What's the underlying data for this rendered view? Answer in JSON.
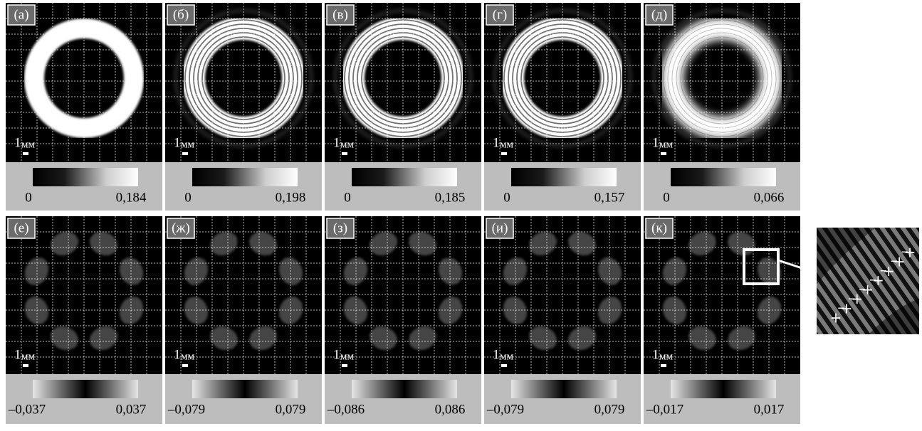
{
  "panels": [
    {
      "label": "(а)",
      "scale_number": "1",
      "scale_unit": "мм",
      "colorbar_min": "0",
      "colorbar_max": "0,184"
    },
    {
      "label": "(б)",
      "scale_number": "1",
      "scale_unit": "мм",
      "colorbar_min": "0",
      "colorbar_max": "0,198"
    },
    {
      "label": "(в)",
      "scale_number": "1",
      "scale_unit": "мм",
      "colorbar_min": "0",
      "colorbar_max": "0,185"
    },
    {
      "label": "(г)",
      "scale_number": "1",
      "scale_unit": "мм",
      "colorbar_min": "0",
      "colorbar_max": "0,157"
    },
    {
      "label": "(д)",
      "scale_number": "1",
      "scale_unit": "мм",
      "colorbar_min": "0",
      "colorbar_max": "0,066"
    },
    {
      "label": "(е)",
      "scale_number": "1",
      "scale_unit": "мм",
      "colorbar_min": "–0,037",
      "colorbar_max": "0,037"
    },
    {
      "label": "(ж)",
      "scale_number": "1",
      "scale_unit": "мм",
      "colorbar_min": "–0,079",
      "colorbar_max": "0,079"
    },
    {
      "label": "(з)",
      "scale_number": "1",
      "scale_unit": "мм",
      "colorbar_min": "–0,086",
      "colorbar_max": "0,086"
    },
    {
      "label": "(и)",
      "scale_number": "1",
      "scale_unit": "мм",
      "colorbar_min": "–0,079",
      "colorbar_max": "0,079"
    },
    {
      "label": "(к)",
      "scale_number": "1",
      "scale_unit": "мм",
      "colorbar_min": "–0,017",
      "colorbar_max": "0,017"
    }
  ],
  "inset": {
    "signs": [
      "+",
      "–",
      "+",
      "–",
      "+",
      "–",
      "+",
      "–",
      "+",
      "–",
      "+",
      "–",
      "+",
      "–",
      "+"
    ]
  }
}
